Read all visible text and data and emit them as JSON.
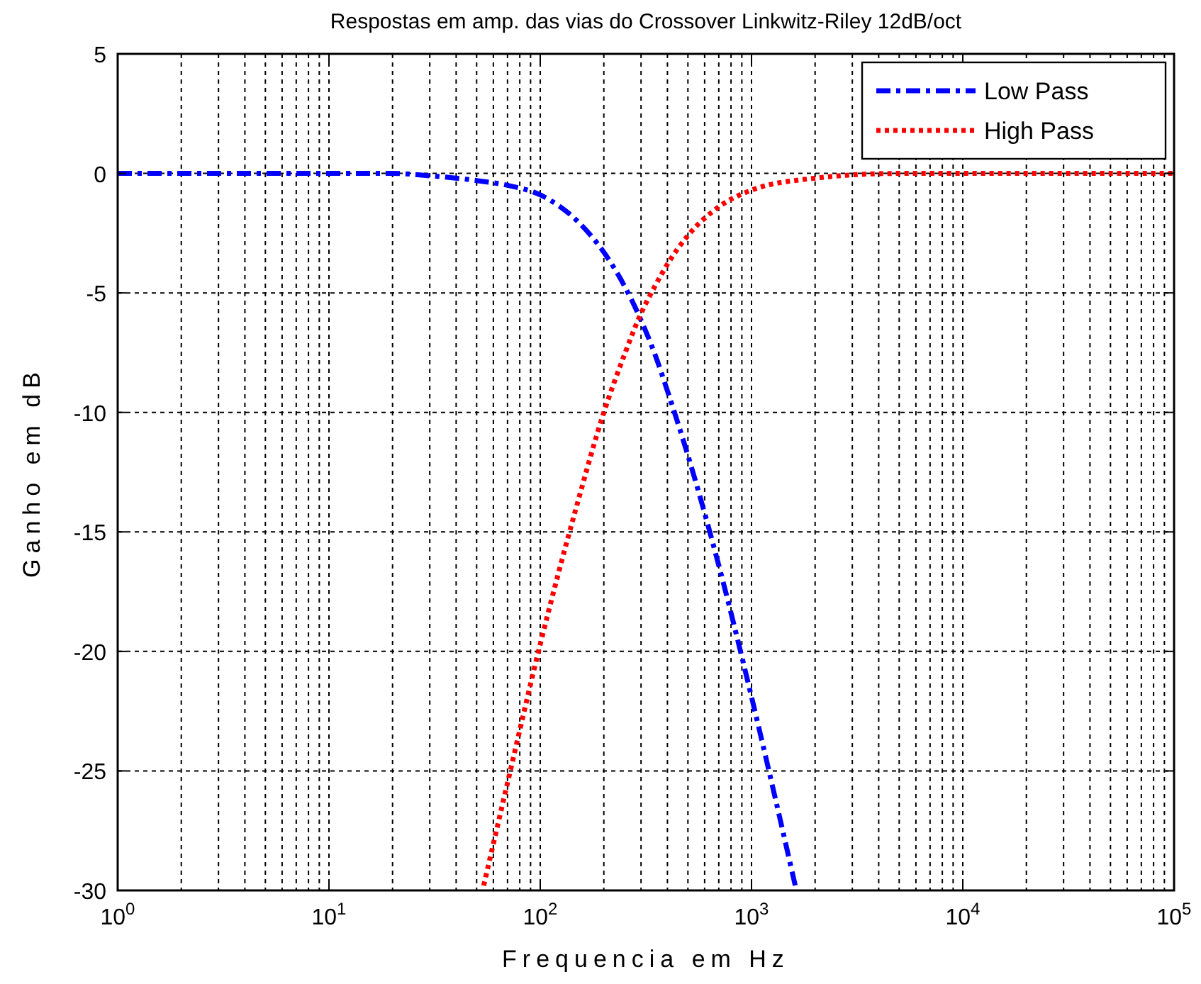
{
  "chart_data": {
    "type": "line",
    "title": "Respostas em amp. das vias do Crossover Linkwitz-Riley 12dB/oct",
    "xlabel": "Frequencia em Hz",
    "ylabel": "Ganho em dB",
    "log": "x",
    "grid": true,
    "legend": "top right",
    "xlim": [
      1,
      100000
    ],
    "xticks": [
      {
        "value": 1,
        "label": "10$^{0}$"
      },
      {
        "value": 10,
        "label": "10$^{1}$"
      },
      {
        "value": 100,
        "label": "10$^{2}$"
      },
      {
        "value": 1000,
        "label": "10$^{3}$"
      },
      {
        "value": 10000,
        "label": "10$^{4}$"
      },
      {
        "value": 100000,
        "label": "10$^{5}$"
      }
    ],
    "ylim": [
      -30,
      5
    ],
    "yticks": [
      -30,
      -25,
      -20,
      -15,
      -10,
      -5,
      0,
      5
    ],
    "series": [
      {
        "name": "Low Pass",
        "color": "#0000ff",
        "line_style": "dashdot",
        "x": [
          1,
          10,
          20,
          30,
          50,
          70,
          100,
          150,
          200,
          250,
          295,
          350,
          400,
          500,
          700,
          1000,
          1300,
          1630
        ],
        "values": [
          0,
          0,
          0,
          -0.1,
          -0.3,
          -0.5,
          -0.9,
          -2,
          -3.3,
          -4.7,
          -6,
          -7.6,
          -9.1,
          -11.8,
          -16.4,
          -21.9,
          -26.2,
          -30
        ]
      },
      {
        "name": "High Pass",
        "color": "#ff0000",
        "line_style": "dotted",
        "x": [
          54,
          70,
          100,
          150,
          200,
          250,
          295,
          350,
          400,
          500,
          700,
          1000,
          2000,
          5000,
          10000,
          100000
        ],
        "values": [
          -29.8,
          -25.5,
          -19.7,
          -13.8,
          -10,
          -7.6,
          -6,
          -4.7,
          -3.8,
          -2.6,
          -1.4,
          -0.7,
          -0.2,
          0,
          0,
          0
        ]
      }
    ]
  }
}
